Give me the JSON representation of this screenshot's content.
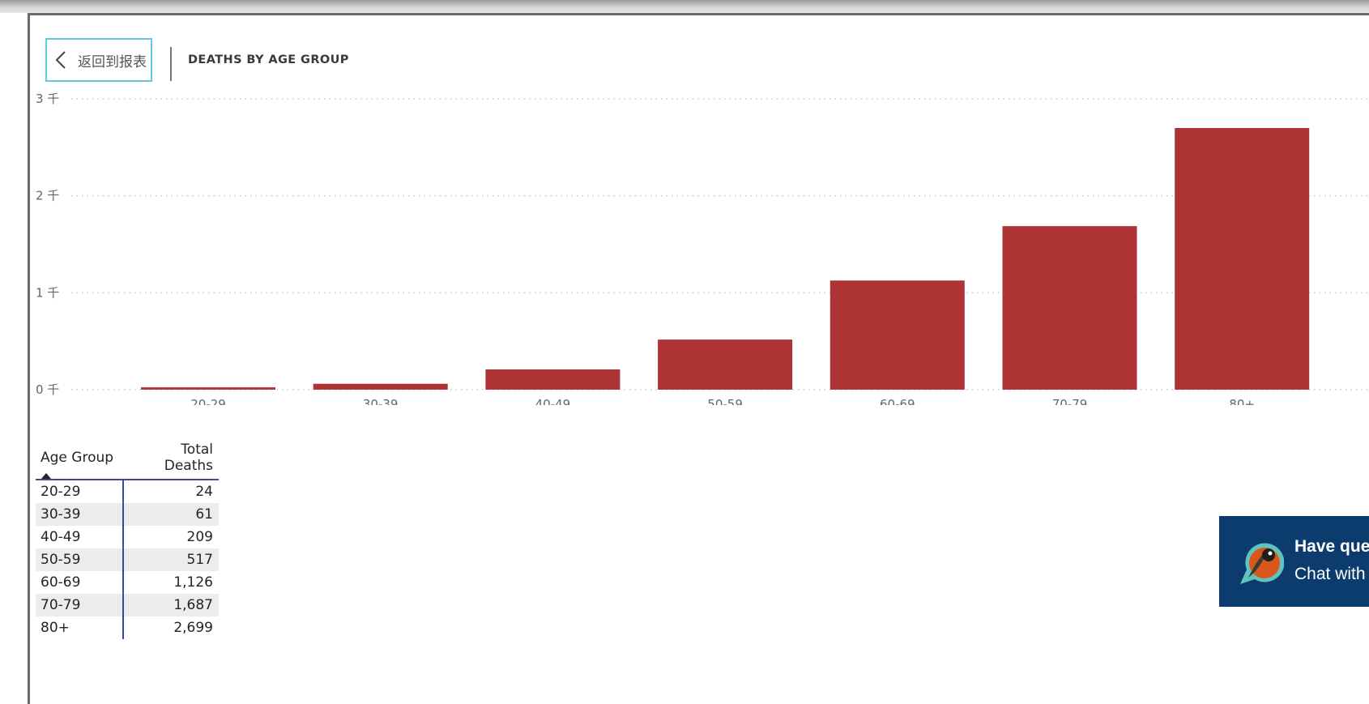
{
  "header": {
    "back_label": "返回到报表",
    "title": "DEATHS BY AGE GROUP"
  },
  "chart_data": {
    "type": "bar",
    "title": "DEATHS BY AGE GROUP",
    "categories": [
      "20-29",
      "30-39",
      "40-49",
      "50-59",
      "60-69",
      "70-79",
      "80+"
    ],
    "values": [
      24,
      61,
      209,
      517,
      1126,
      1687,
      2699
    ],
    "yticks": [
      0,
      1000,
      2000,
      3000
    ],
    "ytick_labels": [
      "0 千",
      "1 千",
      "2 千",
      "3 千"
    ],
    "ylim": [
      0,
      3000
    ],
    "bar_color": "#ad3335",
    "grid": true
  },
  "table": {
    "headers": [
      "Age Group",
      "Total Deaths"
    ],
    "rows": [
      [
        "20-29",
        "24"
      ],
      [
        "30-39",
        "61"
      ],
      [
        "40-49",
        "209"
      ],
      [
        "50-59",
        "517"
      ],
      [
        "60-69",
        "1,126"
      ],
      [
        "70-79",
        "1,687"
      ],
      [
        "80+",
        "2,699"
      ]
    ]
  },
  "chat": {
    "title": "Have que",
    "subtitle": "Chat with"
  },
  "colors": {
    "accent": "#5ec8e6",
    "bar": "#ad3335",
    "table_rule": "#3c4a9c",
    "chat_bg": "#0c3c6e"
  }
}
